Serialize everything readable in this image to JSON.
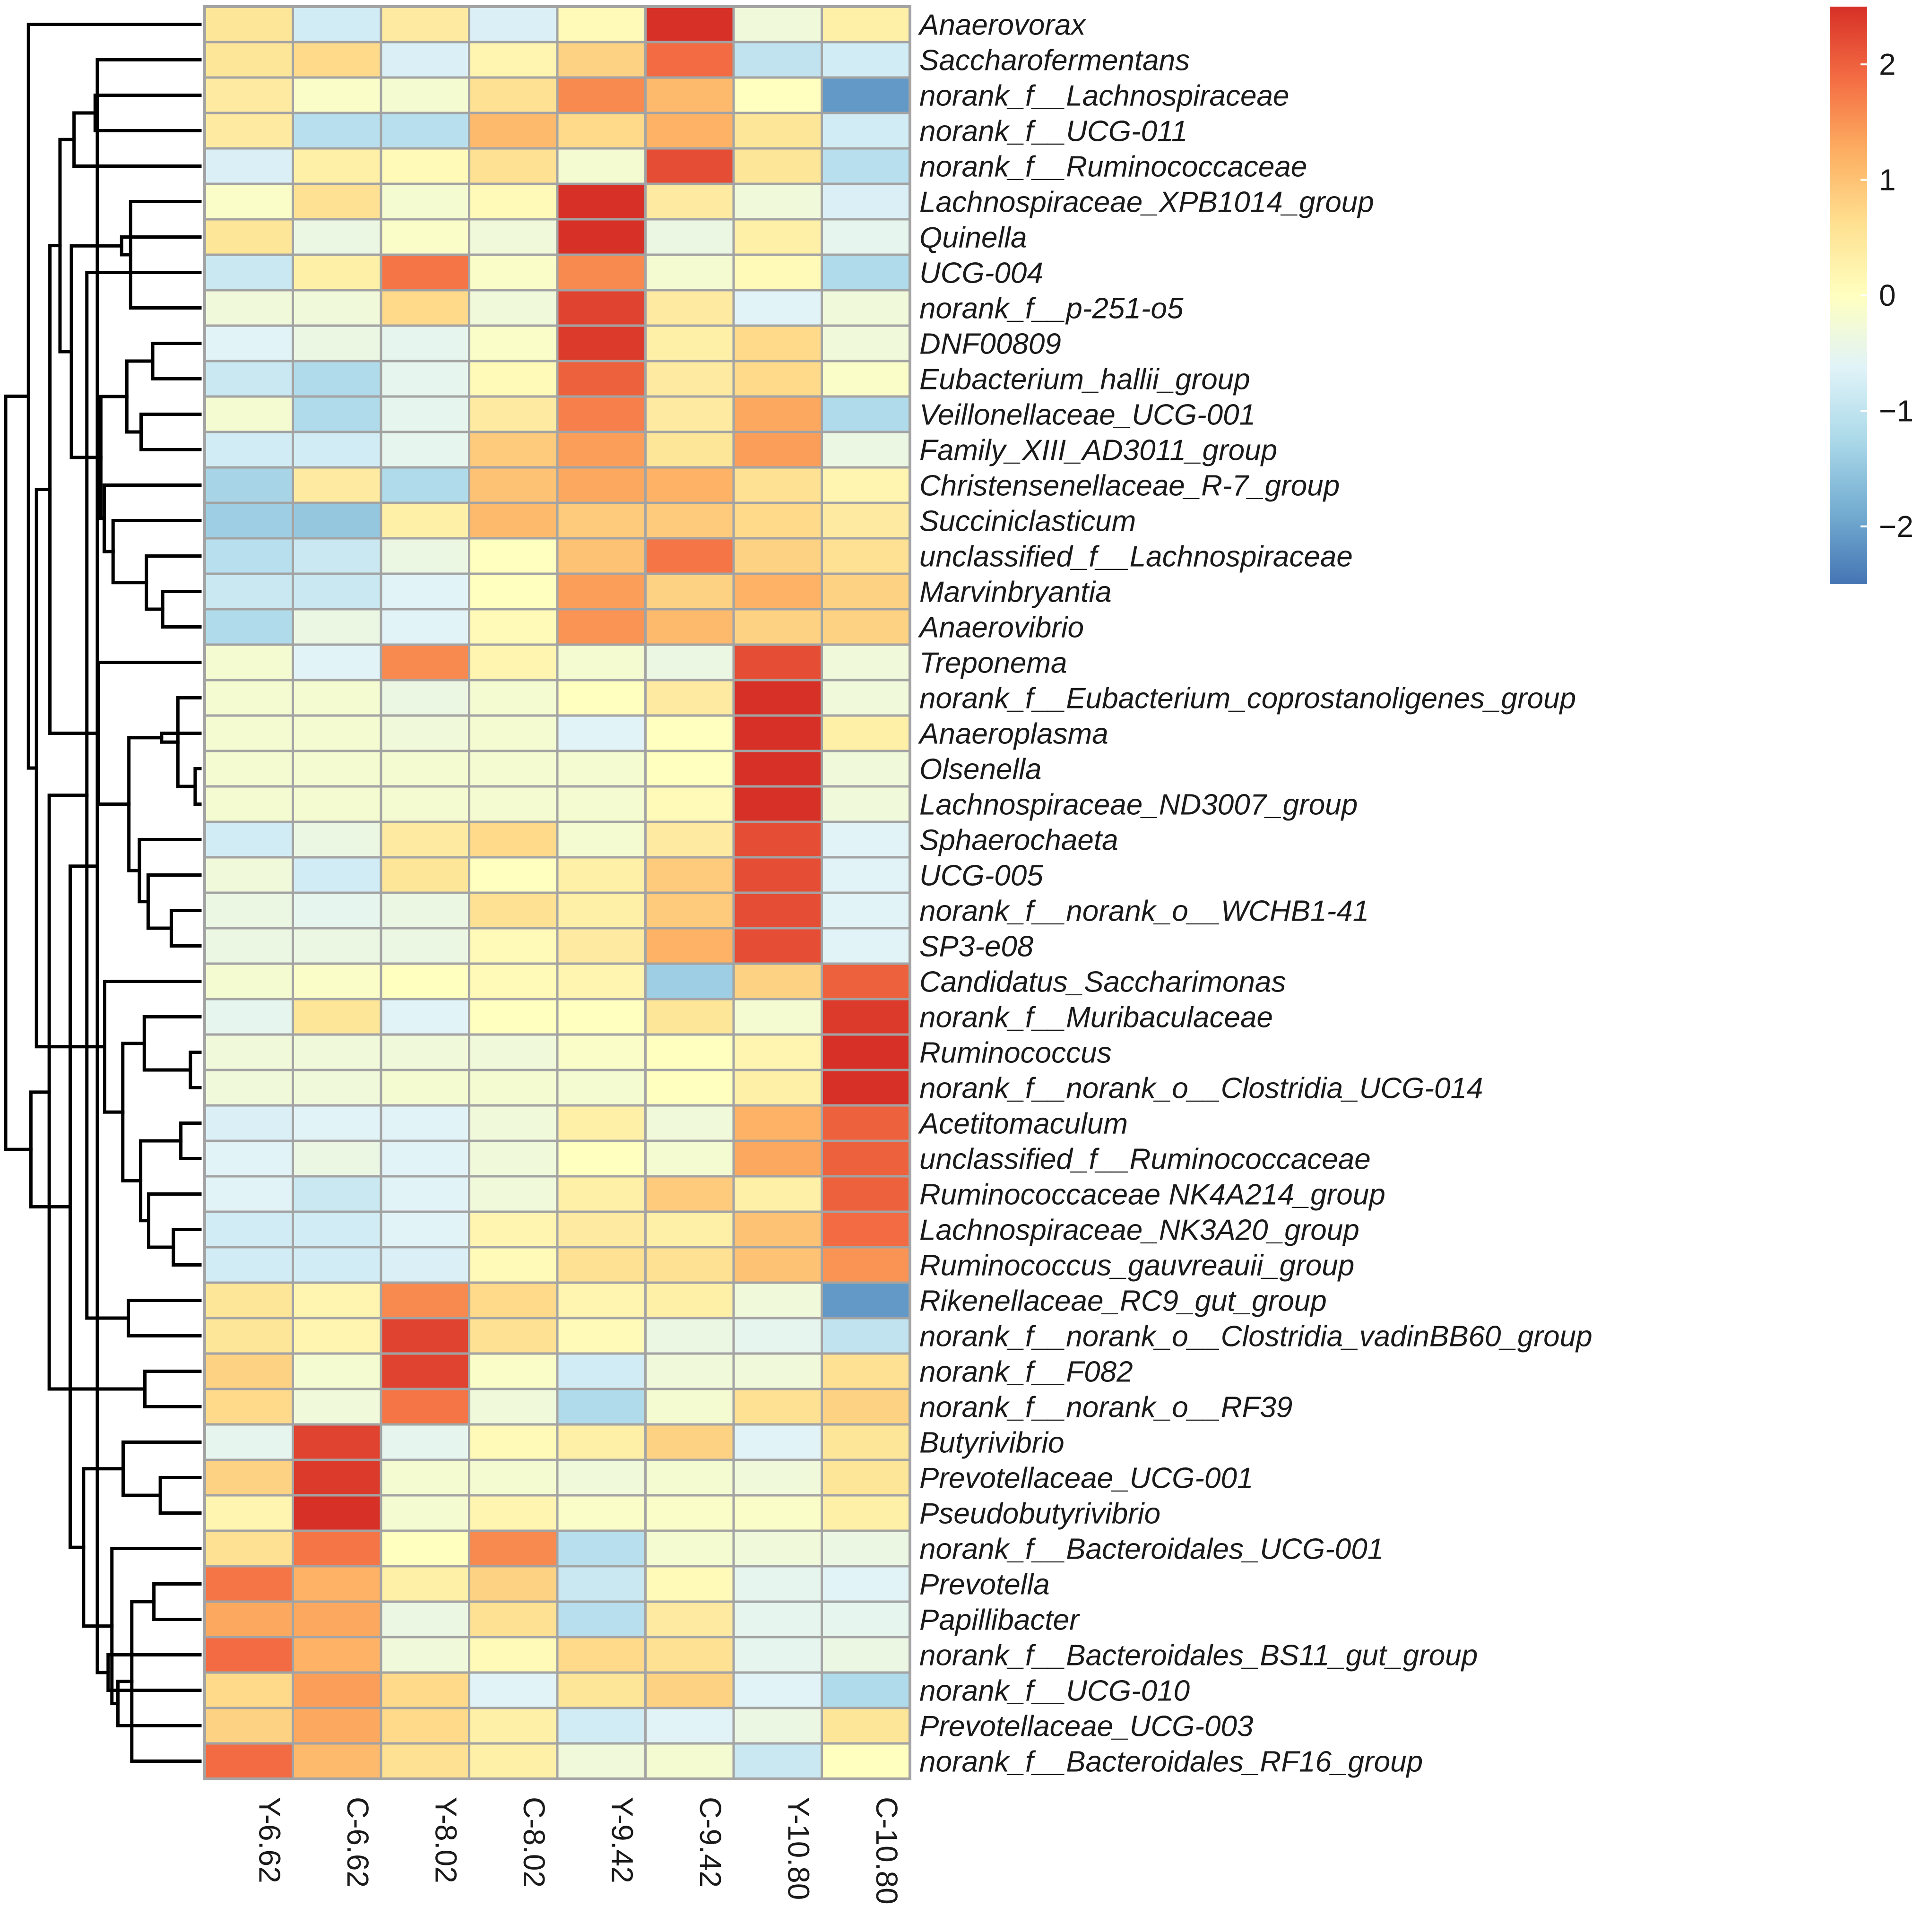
{
  "chart_data": {
    "type": "heatmap",
    "title": "",
    "columns": [
      "Y-6.62",
      "C-6.62",
      "Y-8.02",
      "C-8.02",
      "Y-9.42",
      "C-9.42",
      "Y-10.80",
      "C-10.80"
    ],
    "rows": [
      "Anaerovorax",
      "Saccharofermentans",
      "norank_f__Lachnospiraceae",
      "norank_f__UCG-011",
      "norank_f__Ruminococcaceae",
      "Lachnospiraceae_XPB1014_group",
      "Quinella",
      "UCG-004",
      "norank_f__p-251-o5",
      "DNF00809",
      "Eubacterium_hallii_group",
      "Veillonellaceae_UCG-001",
      "Family_XIII_AD3011_group",
      "Christensenellaceae_R-7_group",
      "Succiniclasticum",
      "unclassified_f__Lachnospiraceae",
      "Marvinbryantia",
      "Anaerovibrio",
      "Treponema",
      "norank_f__Eubacterium_coprostanoligenes_group",
      "Anaeroplasma",
      "Olsenella",
      "Lachnospiraceae_ND3007_group",
      "Sphaerochaeta",
      "UCG-005",
      "norank_f__norank_o__WCHB1-41",
      "SP3-e08",
      "Candidatus_Saccharimonas",
      "norank_f__Muribaculaceae",
      "Ruminococcus",
      "norank_f__norank_o__Clostridia_UCG-014",
      "Acetitomaculum",
      "unclassified_f__Ruminococcaceae",
      "Ruminococcaceae NK4A214_group",
      "Lachnospiraceae_NK3A20_group",
      "Ruminococcus_gauvreauii_group",
      "Rikenellaceae_RC9_gut_group",
      "norank_f__norank_o__Clostridia_vadinBB60_group",
      "norank_f__F082",
      "norank_f__norank_o__RF39",
      "Butyrivibrio",
      "Prevotellaceae_UCG-001",
      "Pseudobutyrivibrio",
      "norank_f__Bacteroidales_UCG-001",
      "Prevotella",
      "Papillibacter",
      "norank_f__Bacteroidales_BS11_gut_group",
      "norank_f__UCG-010",
      "Prevotellaceae_UCG-003",
      "norank_f__Bacteroidales_RF16_group"
    ],
    "values": [
      [
        0.5,
        -0.8,
        0.4,
        -0.7,
        0.1,
        2.5,
        -0.3,
        0.3
      ],
      [
        0.5,
        0.7,
        -0.7,
        0.2,
        0.8,
        1.9,
        -1.0,
        -0.8
      ],
      [
        0.4,
        -0.1,
        -0.2,
        0.6,
        1.6,
        1.1,
        0.0,
        -2.1
      ],
      [
        0.4,
        -1.1,
        -1.1,
        1.1,
        0.7,
        1.2,
        0.5,
        -0.8
      ],
      [
        -0.7,
        0.3,
        0.1,
        0.6,
        -0.2,
        2.2,
        0.5,
        -1.1
      ],
      [
        -0.1,
        0.6,
        -0.2,
        0.1,
        2.5,
        0.4,
        -0.3,
        -0.7
      ],
      [
        0.5,
        -0.4,
        -0.1,
        -0.3,
        2.5,
        -0.4,
        0.3,
        -0.5
      ],
      [
        -0.9,
        0.3,
        1.8,
        -0.1,
        1.6,
        -0.2,
        0.1,
        -1.2
      ],
      [
        -0.3,
        -0.3,
        0.7,
        -0.3,
        2.3,
        0.4,
        -0.6,
        -0.3
      ],
      [
        -0.6,
        -0.4,
        -0.5,
        -0.1,
        2.4,
        0.3,
        0.7,
        -0.3
      ],
      [
        -0.9,
        -1.2,
        -0.5,
        0.1,
        2.0,
        0.4,
        0.7,
        -0.1
      ],
      [
        -0.2,
        -1.2,
        -0.5,
        0.4,
        1.7,
        0.4,
        1.3,
        -1.2
      ],
      [
        -0.8,
        -0.8,
        -0.5,
        0.9,
        1.4,
        0.5,
        1.4,
        -0.4
      ],
      [
        -1.3,
        0.4,
        -1.2,
        1.0,
        1.3,
        1.2,
        0.6,
        0.2
      ],
      [
        -1.4,
        -1.5,
        0.3,
        1.1,
        0.9,
        0.9,
        0.7,
        0.4
      ],
      [
        -1.1,
        -0.9,
        -0.4,
        0.0,
        1.0,
        1.8,
        0.8,
        0.6
      ],
      [
        -0.9,
        -0.9,
        -0.6,
        0.0,
        1.4,
        0.8,
        1.2,
        0.8
      ],
      [
        -1.2,
        -0.4,
        -0.6,
        0.1,
        1.5,
        1.1,
        0.8,
        0.8
      ],
      [
        -0.2,
        -0.6,
        1.6,
        0.2,
        -0.2,
        -0.4,
        2.2,
        -0.3
      ],
      [
        -0.2,
        -0.2,
        -0.4,
        -0.2,
        0.0,
        0.4,
        2.5,
        -0.3
      ],
      [
        -0.2,
        -0.2,
        -0.3,
        -0.2,
        -0.6,
        0.0,
        2.6,
        0.3
      ],
      [
        -0.2,
        -0.2,
        -0.2,
        -0.2,
        -0.2,
        0.0,
        2.6,
        -0.3
      ],
      [
        -0.2,
        -0.2,
        -0.2,
        -0.2,
        -0.2,
        0.1,
        2.6,
        -0.3
      ],
      [
        -0.8,
        -0.4,
        0.4,
        0.7,
        -0.2,
        0.4,
        2.2,
        -0.6
      ],
      [
        -0.3,
        -0.8,
        0.5,
        0.0,
        0.3,
        0.9,
        2.2,
        -0.6
      ],
      [
        -0.4,
        -0.5,
        -0.4,
        0.6,
        0.3,
        0.9,
        2.2,
        -0.6
      ],
      [
        -0.4,
        -0.4,
        -0.4,
        0.1,
        0.4,
        1.2,
        2.2,
        -0.6
      ],
      [
        -0.2,
        -0.1,
        0.0,
        0.1,
        0.2,
        -1.4,
        0.8,
        2.0
      ],
      [
        -0.5,
        0.5,
        -0.6,
        0.0,
        0.0,
        0.5,
        -0.2,
        2.4
      ],
      [
        -0.3,
        -0.3,
        -0.3,
        -0.3,
        -0.1,
        0.0,
        0.2,
        2.5
      ],
      [
        -0.3,
        -0.3,
        -0.2,
        -0.2,
        -0.2,
        0.0,
        0.3,
        2.5
      ],
      [
        -0.7,
        -0.6,
        -0.6,
        -0.3,
        0.3,
        -0.3,
        1.2,
        2.0
      ],
      [
        -0.6,
        -0.4,
        -0.6,
        -0.3,
        0.0,
        -0.2,
        1.3,
        2.0
      ],
      [
        -0.6,
        -0.9,
        -0.6,
        -0.3,
        0.3,
        0.9,
        0.3,
        2.0
      ],
      [
        -0.8,
        -0.8,
        -0.6,
        0.2,
        0.4,
        0.3,
        1.0,
        1.9
      ],
      [
        -0.8,
        -0.8,
        -0.7,
        0.1,
        0.6,
        0.6,
        1.0,
        1.5
      ],
      [
        0.5,
        0.2,
        1.6,
        0.7,
        0.2,
        0.3,
        -0.3,
        -2.1
      ],
      [
        0.5,
        0.2,
        2.3,
        0.6,
        0.1,
        -0.4,
        -0.5,
        -1.0
      ],
      [
        0.8,
        -0.2,
        2.3,
        -0.1,
        -0.8,
        -0.3,
        -0.3,
        0.6
      ],
      [
        0.7,
        -0.3,
        1.8,
        -0.3,
        -1.2,
        -0.2,
        0.6,
        0.8
      ],
      [
        -0.5,
        2.3,
        -0.5,
        0.1,
        0.3,
        0.8,
        -0.6,
        0.5
      ],
      [
        0.8,
        2.4,
        -0.2,
        -0.2,
        -0.3,
        -0.2,
        -0.3,
        0.5
      ],
      [
        0.2,
        2.6,
        -0.2,
        0.2,
        -0.1,
        -0.1,
        -0.1,
        0.3
      ],
      [
        0.6,
        1.8,
        0.0,
        1.6,
        -1.1,
        -0.2,
        -0.3,
        -0.4
      ],
      [
        1.8,
        1.2,
        0.3,
        0.8,
        -0.9,
        0.1,
        -0.5,
        -0.6
      ],
      [
        1.3,
        1.3,
        -0.4,
        0.6,
        -1.1,
        0.4,
        -0.5,
        -0.5
      ],
      [
        1.9,
        1.2,
        -0.3,
        0.1,
        0.7,
        0.6,
        -0.5,
        -0.4
      ],
      [
        0.7,
        1.4,
        0.7,
        -0.6,
        0.5,
        0.8,
        -0.6,
        -1.2
      ],
      [
        0.8,
        1.3,
        0.7,
        0.3,
        -0.8,
        -0.6,
        -0.4,
        0.5
      ],
      [
        1.9,
        1.1,
        0.6,
        0.3,
        -0.3,
        -0.2,
        -0.9,
        0.0
      ]
    ],
    "color_scale": {
      "range": [
        -2.5,
        2.5
      ],
      "stops": [
        {
          "value": -2.5,
          "color": "#4575b4"
        },
        {
          "value": -1.875,
          "color": "#74add1"
        },
        {
          "value": -1.25,
          "color": "#abd9e9"
        },
        {
          "value": -0.625,
          "color": "#e0f3f8"
        },
        {
          "value": 0,
          "color": "#ffffbf"
        },
        {
          "value": 0.625,
          "color": "#fee090"
        },
        {
          "value": 1.25,
          "color": "#fdae61"
        },
        {
          "value": 1.875,
          "color": "#f46d43"
        },
        {
          "value": 2.5,
          "color": "#d73027"
        }
      ],
      "ticks": [
        {
          "value": 2,
          "label": "2"
        },
        {
          "value": 1,
          "label": "1"
        },
        {
          "value": 0,
          "label": "0"
        },
        {
          "value": -1,
          "label": "−1"
        },
        {
          "value": -2,
          "label": "−2"
        }
      ]
    },
    "cell_border_color": "#a3a3a3"
  }
}
